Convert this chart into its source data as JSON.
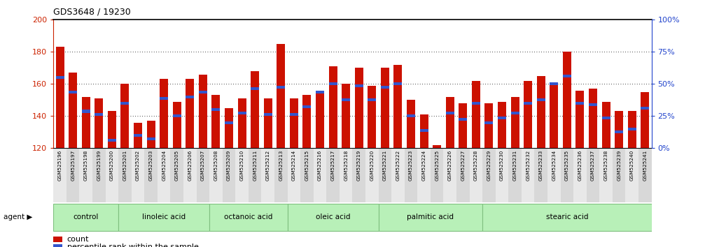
{
  "title": "GDS3648 / 19230",
  "ylim": [
    120,
    200
  ],
  "yticks_left": [
    120,
    140,
    160,
    180,
    200
  ],
  "yticks_right": [
    0,
    25,
    50,
    75,
    100
  ],
  "ytick_right_labels": [
    "0%",
    "25%",
    "50%",
    "75%",
    "100%"
  ],
  "samples": [
    "GSM525196",
    "GSM525197",
    "GSM525198",
    "GSM525199",
    "GSM525200",
    "GSM525201",
    "GSM525202",
    "GSM525203",
    "GSM525204",
    "GSM525205",
    "GSM525206",
    "GSM525207",
    "GSM525208",
    "GSM525209",
    "GSM525210",
    "GSM525211",
    "GSM525212",
    "GSM525213",
    "GSM525214",
    "GSM525215",
    "GSM525216",
    "GSM525217",
    "GSM525218",
    "GSM525219",
    "GSM525220",
    "GSM525221",
    "GSM525222",
    "GSM525223",
    "GSM525224",
    "GSM525225",
    "GSM525226",
    "GSM525227",
    "GSM525228",
    "GSM525229",
    "GSM525230",
    "GSM525231",
    "GSM525232",
    "GSM525233",
    "GSM525234",
    "GSM525235",
    "GSM525236",
    "GSM525237",
    "GSM525238",
    "GSM525239",
    "GSM525240",
    "GSM525241"
  ],
  "bar_heights": [
    183,
    167,
    152,
    151,
    143,
    160,
    136,
    137,
    163,
    149,
    163,
    166,
    153,
    145,
    151,
    168,
    151,
    185,
    151,
    153,
    156,
    171,
    160,
    170,
    159,
    170,
    172,
    150,
    141,
    122,
    152,
    148,
    162,
    148,
    149,
    152,
    162,
    165,
    161,
    180,
    156,
    157,
    149,
    143,
    143,
    155
  ],
  "blue_dot_heights": [
    164,
    155,
    143,
    141,
    125,
    148,
    128,
    126,
    151,
    140,
    152,
    155,
    144,
    136,
    142,
    157,
    141,
    158,
    141,
    146,
    155,
    160,
    150,
    159,
    150,
    158,
    160,
    140,
    131,
    118,
    142,
    138,
    148,
    136,
    139,
    142,
    148,
    150,
    160,
    165,
    148,
    147,
    139,
    130,
    132,
    145
  ],
  "groups": [
    {
      "label": "control",
      "start": 0,
      "end": 4
    },
    {
      "label": "linoleic acid",
      "start": 5,
      "end": 11
    },
    {
      "label": "octanoic acid",
      "start": 12,
      "end": 17
    },
    {
      "label": "oleic acid",
      "start": 18,
      "end": 24
    },
    {
      "label": "palmitic acid",
      "start": 25,
      "end": 32
    },
    {
      "label": "stearic acid",
      "start": 33,
      "end": 45
    }
  ],
  "group_color": "#b8f0b8",
  "group_border_color": "#80c080",
  "bar_color": "#cc1100",
  "dot_color": "#3355cc",
  "bg_plot": "#ffffff",
  "xtick_bg_even": "#e8e8e8",
  "xtick_bg_odd": "#d8d8d8",
  "left_tick_color": "#cc2200",
  "right_tick_color": "#2244cc",
  "title_color": "#000000"
}
